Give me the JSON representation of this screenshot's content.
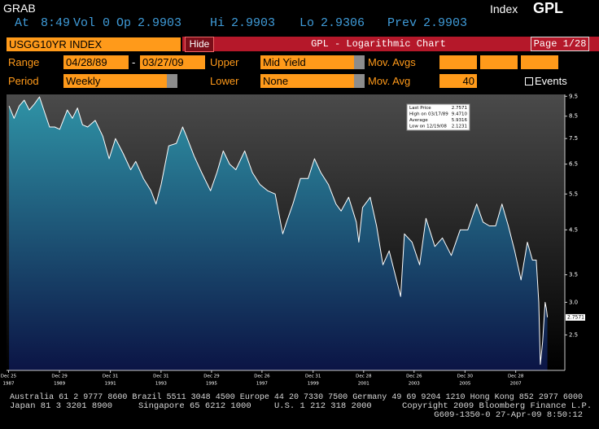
{
  "header": {
    "function": "GRAB",
    "security_type": "Index",
    "ticker": "GPL",
    "quote": [
      {
        "label": "At",
        "value": "8:49"
      },
      {
        "label": "Vol",
        "value": "0"
      },
      {
        "label": "Op",
        "value": "2.9903"
      },
      {
        "label": "Hi",
        "value": "2.9903"
      },
      {
        "label": "Lo",
        "value": "2.9306"
      },
      {
        "label": "Prev",
        "value": "2.9903"
      }
    ]
  },
  "toolbar": {
    "security": "USGG10YR INDEX",
    "hide": "Hide",
    "title": "GPL - Logarithmic Chart",
    "page": "Page 1/28"
  },
  "controls": {
    "range_label": "Range",
    "range_start": "04/28/89",
    "range_sep": "-",
    "range_end": "03/27/09",
    "upper_label": "Upper",
    "upper": "Mid Yield",
    "mov_avgs_label": "Mov. Avgs",
    "period_label": "Period",
    "period": "Weekly",
    "lower_label": "Lower",
    "lower": "None",
    "mov_avg_label": "Mov. Avg",
    "mov_avg": "40",
    "events": "Events"
  },
  "chart_data": {
    "type": "area",
    "log_scale": true,
    "color": "#ffffff",
    "fill_colors": [
      "#2f93a6",
      "#0b1445"
    ],
    "background_colors": [
      "#4a4a4a",
      "#000000"
    ],
    "x": [
      1988.0,
      1988.2,
      1988.4,
      1988.6,
      1988.8,
      1989.0,
      1989.2,
      1989.4,
      1989.6,
      1989.8,
      1990.0,
      1990.3,
      1990.5,
      1990.7,
      1990.9,
      1991.1,
      1991.4,
      1991.7,
      1991.95,
      1992.2,
      1992.5,
      1992.8,
      1993.0,
      1993.3,
      1993.6,
      1993.8,
      1994.0,
      1994.3,
      1994.6,
      1994.85,
      1995.0,
      1995.3,
      1995.6,
      1995.95,
      1996.2,
      1996.45,
      1996.7,
      1996.95,
      1997.3,
      1997.6,
      1997.9,
      1998.2,
      1998.5,
      1998.8,
      1998.95,
      1999.2,
      1999.5,
      1999.8,
      2000.05,
      2000.3,
      2000.6,
      2000.9,
      2001.1,
      2001.4,
      2001.7,
      2001.8,
      2001.95,
      2002.25,
      2002.5,
      2002.75,
      2003.0,
      2003.45,
      2003.6,
      2003.9,
      2004.2,
      2004.45,
      2004.8,
      2005.1,
      2005.45,
      2005.8,
      2006.1,
      2006.45,
      2006.7,
      2006.95,
      2007.2,
      2007.45,
      2007.7,
      2007.95,
      2008.2,
      2008.45,
      2008.65,
      2008.8,
      2008.9,
      2008.96,
      2009.05,
      2009.15,
      2009.2,
      2009.24
    ],
    "values": [
      9.0,
      8.4,
      9.0,
      9.3,
      8.8,
      9.1,
      9.47,
      8.7,
      8.0,
      8.0,
      7.9,
      8.8,
      8.4,
      8.9,
      8.1,
      8.0,
      8.3,
      7.6,
      6.7,
      7.5,
      6.9,
      6.3,
      6.6,
      6.0,
      5.6,
      5.2,
      5.8,
      7.2,
      7.3,
      8.0,
      7.6,
      6.8,
      6.2,
      5.6,
      6.2,
      7.0,
      6.5,
      6.3,
      7.0,
      6.2,
      5.8,
      5.6,
      5.5,
      4.4,
      4.7,
      5.2,
      6.0,
      6.0,
      6.7,
      6.2,
      5.8,
      5.2,
      5.0,
      5.4,
      4.7,
      4.2,
      5.1,
      5.4,
      4.6,
      3.7,
      4.0,
      3.1,
      4.4,
      4.2,
      3.7,
      4.8,
      4.1,
      4.3,
      3.9,
      4.5,
      4.5,
      5.2,
      4.7,
      4.6,
      4.6,
      5.2,
      4.6,
      4.0,
      3.4,
      4.2,
      3.8,
      3.8,
      3.0,
      2.12,
      2.4,
      3.0,
      2.9,
      2.76
    ],
    "xlim": [
      1987.9,
      2009.35
    ],
    "ylim": [
      2.05,
      9.6
    ],
    "xticks": [
      {
        "value": 1987.98,
        "label": "Dec 25"
      },
      {
        "value": 1989.99,
        "label": "Dec 29"
      },
      {
        "value": 1991.997,
        "label": "Dec 31"
      },
      {
        "value": 1993.997,
        "label": "Dec 31"
      },
      {
        "value": 1995.99,
        "label": "Dec 29"
      },
      {
        "value": 1997.98,
        "label": "Dec 26"
      },
      {
        "value": 1999.997,
        "label": "Dec 31"
      },
      {
        "value": 2001.99,
        "label": "Dec 28"
      },
      {
        "value": 2003.98,
        "label": "Dec 26"
      },
      {
        "value": 2005.99,
        "label": "Dec 30"
      },
      {
        "value": 2007.99,
        "label": "Dec 28"
      }
    ],
    "xtick_years": [
      "1987",
      "1989",
      "1991",
      "1993",
      "1995",
      "1997",
      "1999",
      "2001",
      "2003",
      "2005",
      "2007"
    ],
    "yticks": [
      9.5,
      8.5,
      7.5,
      6.5,
      5.5,
      4.5,
      3.5,
      {
        "value": 3,
        "label": "3.0"
      },
      2.5
    ],
    "stats": {
      "labels": [
        "Last Price",
        "High on 03/17/89",
        "Average",
        "Low on 12/19/08"
      ],
      "values": [
        2.7571,
        9.471,
        5.9316,
        2.1231
      ],
      "value_labels": [
        "2.7571",
        "9.4710",
        "5.9316",
        "2.1231"
      ]
    }
  },
  "footer": {
    "line1": "Australia 61 2 9777 8600 Brazil 5511 3048 4500 Europe 44 20 7330 7500 Germany 49 69 9204 1210 Hong Kong 852 2977 6000",
    "line2": [
      "Japan 81 3 3201 8900",
      "Singapore 65 6212 1000",
      "U.S. 1 212 318 2000",
      "Copyright 2009 Bloomberg Finance L.P."
    ],
    "line3": "G609-1350-0 27-Apr-09  8:50:12"
  }
}
